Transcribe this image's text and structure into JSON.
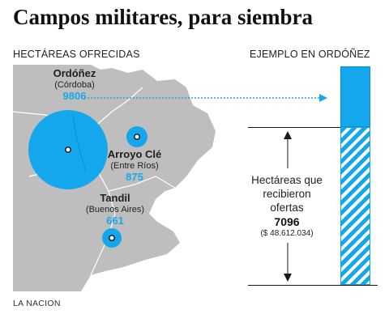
{
  "title": "Campos militares, para siembra",
  "left_section_label": "HECTÁREAS OFRECIDAS",
  "right_section_label": "EJEMPLO EN ORDÓÑEZ",
  "places": [
    {
      "name": "Ordóñez",
      "province": "(Córdoba)",
      "hectares": "9806"
    },
    {
      "name": "Arroyo Clé",
      "province": "(Entre Ríos)",
      "hectares": "875"
    },
    {
      "name": "Tandil",
      "province": "(Buenos Aires)",
      "hectares": "661"
    }
  ],
  "offers": {
    "label_lines": [
      "Hectáreas que",
      "recibieron",
      "ofertas"
    ],
    "hectares": "7096",
    "amount": "($ 48.612.034)"
  },
  "source": "LA NACION",
  "colors": {
    "accent": "#15a7ec",
    "map_gray": "#bdbdbd",
    "dark": "#1a1a1a"
  }
}
